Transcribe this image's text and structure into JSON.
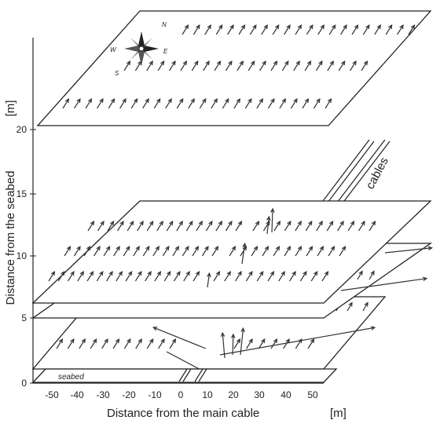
{
  "axes": {
    "x_title": "Distance from the main cable",
    "x_unit": "[m]",
    "y_title": "Distance from the seabed",
    "y_unit": "[m]",
    "x_ticks": [
      "-50",
      "-40",
      "-30",
      "-20",
      "-10",
      "0",
      "10",
      "20",
      "30",
      "40",
      "50"
    ],
    "y_ticks": [
      "0",
      "5",
      "10",
      "15",
      "20"
    ]
  },
  "labels": {
    "cables": "cables",
    "seabed": "seabed"
  },
  "compass": {
    "north": "N",
    "east": "E",
    "south": "S",
    "west": "W"
  },
  "layers": [
    {
      "height_m": 1
    },
    {
      "height_m": 5
    },
    {
      "height_m": 11
    },
    {
      "height_m": 20
    }
  ],
  "colors": {
    "line": "#222222",
    "background": "#ffffff"
  }
}
